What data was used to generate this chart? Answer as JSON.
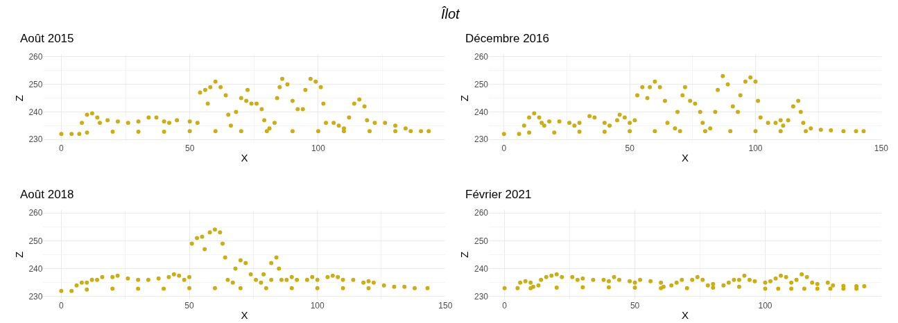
{
  "chart_data": [
    {
      "type": "scatter",
      "title": "Août 2015",
      "annotations": [
        "Îlot"
      ],
      "xlabel": "X",
      "ylabel": "Z",
      "color": "#cdaf0c",
      "marker": "circle",
      "grid": true,
      "x": [
        0,
        4,
        7,
        8,
        10,
        12,
        14,
        15,
        18,
        22,
        26,
        30,
        34,
        37,
        40,
        42,
        45,
        50,
        53,
        54,
        56,
        57,
        58,
        60,
        62,
        64,
        65,
        66,
        68,
        70,
        72,
        72.5,
        74,
        76,
        78,
        79,
        81,
        83,
        84,
        85,
        86,
        88,
        90,
        92,
        94,
        95,
        97,
        99,
        101,
        102,
        103,
        106,
        108,
        110,
        112,
        114,
        116,
        118,
        119,
        122,
        126,
        130,
        134,
        136,
        140,
        143,
        10,
        20,
        30,
        40,
        50,
        60,
        70,
        80,
        90,
        100,
        110,
        120,
        130
      ],
      "values": [
        232,
        232,
        232,
        236,
        239,
        239.5,
        238,
        236,
        237,
        236.5,
        236,
        236.5,
        238,
        238,
        236.5,
        236,
        237,
        236.5,
        236,
        247,
        248,
        243,
        249,
        251,
        249,
        246,
        239,
        235,
        240,
        245,
        244,
        248,
        243,
        243,
        241,
        237,
        234,
        236,
        245,
        249,
        252,
        250,
        244,
        241,
        241,
        248,
        252,
        251,
        249,
        243,
        236,
        236,
        235,
        234,
        238,
        243,
        244.5,
        242,
        237,
        236,
        236,
        235,
        234,
        233,
        233,
        233,
        232.5,
        232.8,
        232.8,
        232.8,
        233,
        233,
        233,
        233,
        233,
        233,
        233,
        233,
        233
      ],
      "xlim": [
        -7,
        149.5
      ],
      "xticks": [
        0,
        50,
        100
      ],
      "ylim": [
        229,
        261
      ],
      "yticks": [
        230,
        240,
        250,
        260
      ]
    },
    {
      "type": "scatter",
      "title": "Décembre 2016",
      "xlabel": "X",
      "ylabel": "Z",
      "color": "#cdaf0c",
      "marker": "circle",
      "grid": true,
      "x": [
        0,
        6,
        8,
        10,
        12,
        14,
        15,
        16,
        18,
        22,
        26,
        28,
        30,
        34,
        36,
        40,
        42,
        45,
        46,
        48,
        50,
        52,
        53,
        55,
        57,
        58,
        60,
        62,
        64,
        65,
        68,
        69,
        71,
        72,
        74,
        76,
        78,
        79,
        82,
        84,
        85,
        87,
        89,
        91,
        93,
        94,
        96,
        98,
        100,
        101,
        102,
        105,
        108,
        110,
        111,
        113,
        115,
        117,
        118,
        119,
        122,
        126,
        130,
        135,
        140,
        143,
        10,
        20,
        30,
        40,
        50,
        60,
        70,
        80,
        90,
        100,
        110,
        120
      ],
      "values": [
        232,
        232,
        235,
        238,
        239.5,
        238,
        236,
        235,
        236.5,
        236.5,
        236,
        235,
        236,
        238.5,
        238,
        236,
        235,
        237,
        239,
        238,
        236,
        237,
        246,
        249,
        245,
        249,
        251,
        249,
        244,
        236,
        234,
        240,
        246,
        249,
        244,
        243,
        240,
        236,
        234,
        240,
        248,
        253,
        250,
        242,
        240,
        246,
        251,
        252.5,
        251,
        244,
        238,
        236,
        236,
        237,
        235,
        237,
        242,
        244,
        240,
        236,
        234,
        233.5,
        233.3,
        233,
        233,
        233,
        232.5,
        232.5,
        232.8,
        232.8,
        233,
        233,
        233,
        233,
        233,
        233,
        233,
        233
      ],
      "xlim": [
        -6,
        150
      ],
      "xticks": [
        0,
        50,
        100,
        150
      ],
      "ylim": [
        229,
        261
      ],
      "yticks": [
        230,
        240,
        250,
        260
      ]
    },
    {
      "type": "scatter",
      "title": "Août 2018",
      "xlabel": "X",
      "ylabel": "Z",
      "color": "#cdaf0c",
      "marker": "circle",
      "grid": true,
      "x": [
        0,
        4,
        6,
        8,
        10,
        12,
        14,
        16,
        20,
        22,
        26,
        30,
        34,
        38,
        42,
        44,
        46,
        48,
        50,
        51,
        53,
        55,
        56,
        58,
        60,
        62,
        63,
        64,
        65,
        67,
        68,
        70,
        72,
        74,
        76,
        78,
        79,
        82,
        82,
        84,
        85,
        86,
        88,
        90,
        92,
        96,
        98,
        100,
        104,
        106,
        108,
        110,
        114,
        118,
        120,
        122,
        126,
        130,
        134,
        138,
        143,
        10,
        20,
        30,
        40,
        50,
        60,
        70,
        80,
        90,
        100,
        110,
        120
      ],
      "values": [
        232,
        232,
        234,
        235,
        235,
        236,
        236,
        237,
        237,
        237.5,
        236.5,
        236,
        236,
        236.5,
        237,
        238,
        237.5,
        236,
        237,
        249,
        251,
        251.5,
        247,
        253,
        254,
        253,
        249,
        244,
        236,
        235,
        240,
        243,
        242,
        238,
        236,
        235,
        238,
        236,
        242,
        244,
        240,
        236,
        236,
        237,
        236,
        236,
        237,
        236,
        237,
        237.5,
        237,
        236,
        236,
        235,
        235.5,
        235,
        234,
        233.5,
        233.5,
        233,
        233,
        232.5,
        232.8,
        232.8,
        232.8,
        233,
        233,
        233,
        233,
        233,
        233,
        233,
        233
      ],
      "xlim": [
        -7,
        150
      ],
      "xticks": [
        0,
        50,
        100,
        150
      ],
      "ylim": [
        229,
        261
      ],
      "yticks": [
        230,
        240,
        250,
        260
      ]
    },
    {
      "type": "scatter",
      "title": "Février 2021",
      "xlabel": "X",
      "ylabel": "Z",
      "color": "#cdaf0c",
      "marker": "circle",
      "grid": true,
      "x": [
        0,
        5,
        6,
        8,
        10,
        11,
        13,
        14,
        16,
        18,
        20,
        22,
        26,
        28,
        30,
        34,
        38,
        40,
        42,
        44,
        48,
        50,
        52,
        56,
        60,
        61,
        64,
        66,
        68,
        72,
        74,
        76,
        78,
        80,
        84,
        86,
        88,
        90,
        92,
        94,
        96,
        100,
        102,
        104,
        106,
        108,
        110,
        112,
        114,
        116,
        118,
        120,
        124,
        126,
        130,
        135,
        138,
        10,
        20,
        30,
        40,
        50,
        60,
        70,
        80,
        90,
        100,
        105,
        110,
        115,
        120,
        125,
        130,
        135
      ],
      "values": [
        233,
        233,
        235,
        235.5,
        235,
        233.5,
        234,
        236,
        237,
        237.5,
        238,
        237,
        237,
        236,
        236.5,
        236,
        236,
        235.5,
        237,
        236,
        235.5,
        235,
        236,
        235.5,
        235,
        233.5,
        234,
        235,
        236,
        236,
        237,
        236,
        234,
        234.5,
        234,
        235,
        236,
        236,
        237.5,
        236,
        235.5,
        235,
        235.5,
        236.5,
        237.5,
        237,
        235,
        236,
        238,
        237,
        235,
        234.5,
        235,
        234,
        233.8,
        233.7,
        233.7,
        233,
        233.2,
        233.3,
        233.3,
        233.2,
        233,
        233,
        233.2,
        233.5,
        232.8,
        232.8,
        232.8,
        232.8,
        232.8,
        232.8,
        232.8,
        232.8
      ],
      "xlim": [
        -6,
        144.5
      ],
      "xticks": [
        0,
        50,
        100
      ],
      "ylim": [
        229,
        261
      ],
      "yticks": [
        230,
        240,
        250,
        260
      ]
    }
  ]
}
